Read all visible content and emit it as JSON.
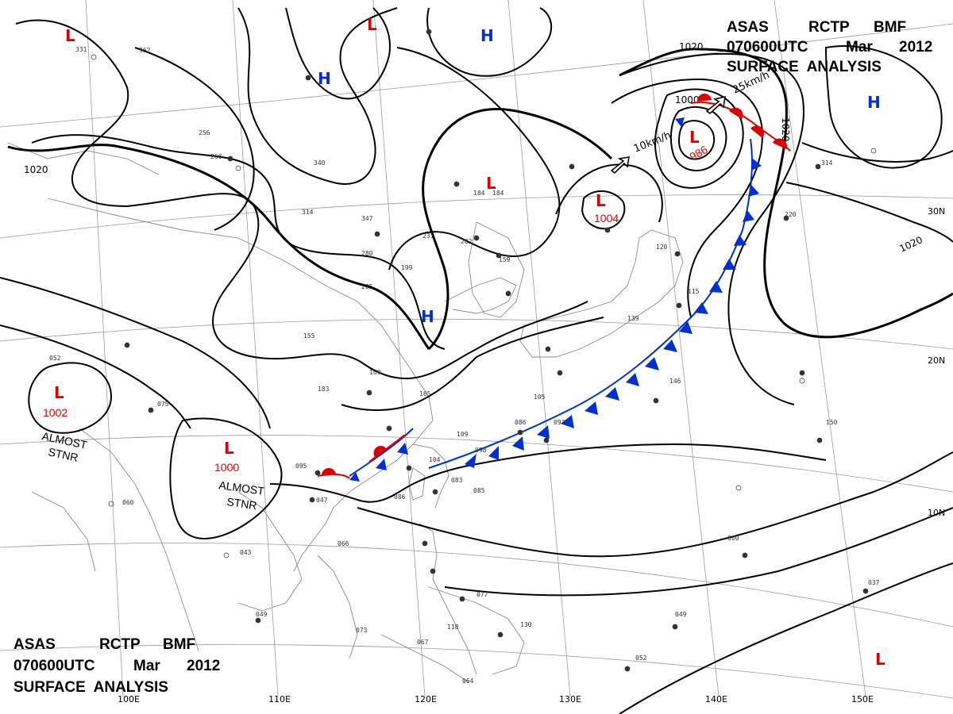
{
  "header_top": {
    "line1": [
      "ASAS",
      "RCTP",
      "BMF"
    ],
    "line2": [
      "070600UTC",
      "Mar",
      "2012"
    ],
    "line3": "SURFACE  ANALYSIS"
  },
  "header_bottom": {
    "line1": [
      "ASAS",
      "RCTP",
      "BMF"
    ],
    "line2": [
      "070600UTC",
      "Mar",
      "2012"
    ],
    "line3": "SURFACE  ANALYSIS"
  },
  "longitude_labels": [
    "100E",
    "110E",
    "120E",
    "130E",
    "140E",
    "150E"
  ],
  "latitude_labels": [
    "30N",
    "20N",
    "10N"
  ],
  "isobar_labels": {
    "c1020_left": "1020",
    "c1020_top": "1020",
    "c1020_right_upper": "1020",
    "c1020_right_lower": "1020",
    "c1000_low": "1000"
  },
  "pressure_centers": [
    {
      "id": "low-nw",
      "type": "L"
    },
    {
      "id": "low-north",
      "type": "L"
    },
    {
      "id": "high-north",
      "type": "H"
    },
    {
      "id": "high-mongolia",
      "type": "H"
    },
    {
      "id": "high-ne",
      "type": "H"
    },
    {
      "id": "low-china",
      "type": "L"
    },
    {
      "id": "low-korea",
      "type": "L",
      "pressure": "1004"
    },
    {
      "id": "low-japan",
      "type": "L",
      "pressure": "986"
    },
    {
      "id": "high-yellow-sea",
      "type": "H"
    },
    {
      "id": "low-tibet",
      "type": "L",
      "pressure": "1002",
      "note": [
        "ALMOST",
        "STNR"
      ]
    },
    {
      "id": "low-sw-china",
      "type": "L",
      "pressure": "1000",
      "note": [
        "ALMOST",
        "STNR"
      ]
    },
    {
      "id": "low-se",
      "type": "L"
    }
  ],
  "movement_labels": {
    "korea_low": "10km/h",
    "japan_low": "25km/h"
  },
  "colors": {
    "low": "#e00000",
    "high": "#0030d0",
    "warm_front": "#e00000",
    "cold_front": "#0030d0",
    "isobar": "#000000",
    "graticule": "#808080",
    "coast": "#888888"
  },
  "station_samples": [
    "331",
    "362",
    "256",
    "266",
    "340",
    "314",
    "347",
    "280",
    "199",
    "231",
    "202",
    "159",
    "184",
    "205",
    "155",
    "169",
    "183",
    "165",
    "109",
    "104",
    "083",
    "085",
    "095",
    "047",
    "086",
    "066",
    "043",
    "049",
    "073",
    "067",
    "118",
    "064",
    "120",
    "115",
    "139",
    "146",
    "150",
    "060",
    "052",
    "049",
    "037",
    "130",
    "077",
    "105",
    "093",
    "098",
    "086",
    "184",
    "220",
    "314",
    "052",
    "075",
    "060"
  ]
}
